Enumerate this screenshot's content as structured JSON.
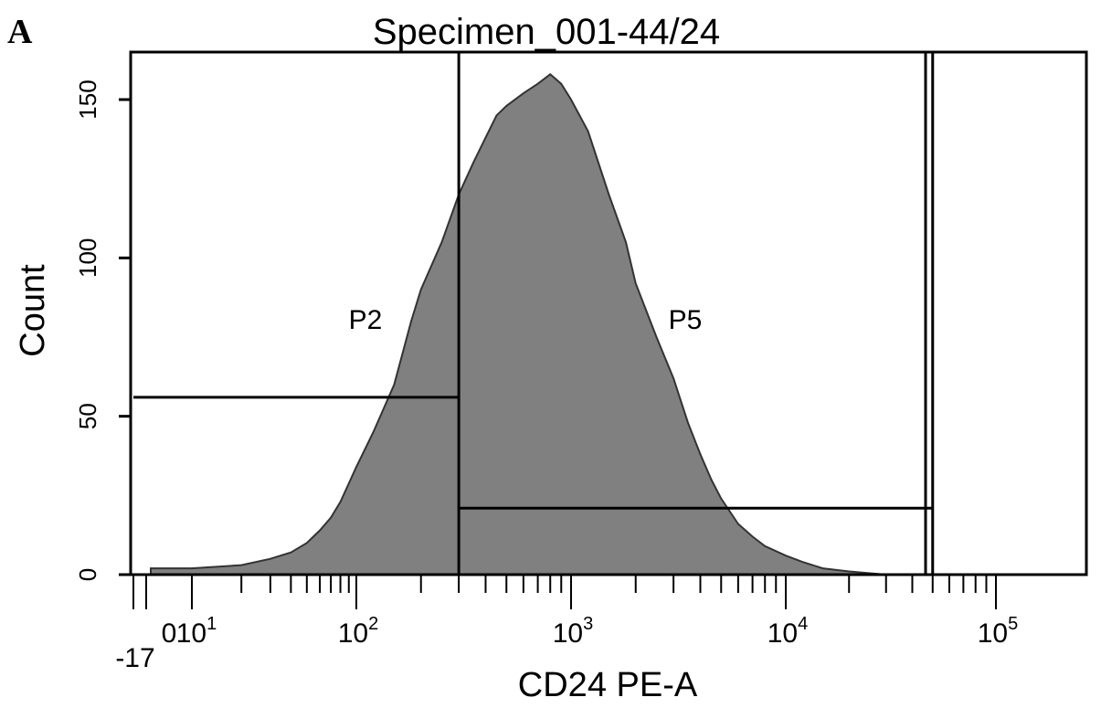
{
  "panel_label": "A",
  "chart_data": {
    "type": "area",
    "title": "Specimen_001-44/24",
    "xlabel": "CD24 PE-A",
    "ylabel": "Count",
    "x_scale": "biexponential",
    "xlim": [
      -17,
      200000
    ],
    "ylim": [
      0,
      165
    ],
    "y_ticks": [
      0,
      50,
      100,
      150
    ],
    "x_tick_labels": [
      "-17",
      "0",
      "10^1",
      "10^2",
      "10^3",
      "10^4",
      "10^5"
    ],
    "grid": false,
    "legend": "none",
    "fill_color": "#808080",
    "line_color": "#333333",
    "series": [
      {
        "x": [
          1,
          10,
          20,
          30,
          40,
          50,
          60,
          70,
          80,
          100,
          120,
          150,
          180,
          200,
          250,
          300,
          350,
          400,
          450,
          500,
          600,
          700,
          800,
          900,
          1000,
          1200,
          1500,
          1800,
          2000,
          2500,
          3000,
          3500,
          4000,
          4500,
          5000,
          6000,
          7000,
          8000,
          10000,
          12000,
          15000,
          20000,
          30000
        ],
        "values": [
          2,
          2,
          3,
          5,
          7,
          10,
          14,
          18,
          23,
          34,
          45,
          60,
          80,
          90,
          105,
          120,
          130,
          138,
          145,
          148,
          152,
          155,
          158,
          155,
          150,
          140,
          120,
          105,
          92,
          75,
          62,
          48,
          38,
          30,
          24,
          16,
          12,
          9,
          6,
          4,
          2,
          1,
          0
        ]
      }
    ],
    "gates": [
      {
        "name": "P2",
        "x_range": [
          -17,
          300
        ],
        "y_level": 56
      },
      {
        "name": "P5",
        "x_range": [
          300,
          50000
        ],
        "y_level": 21
      }
    ]
  }
}
